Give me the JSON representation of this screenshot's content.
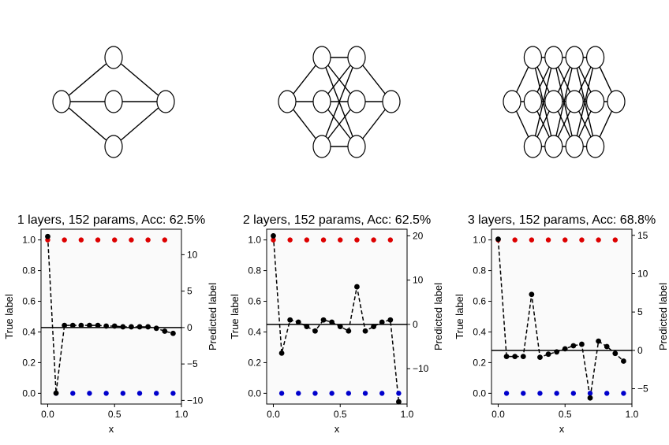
{
  "chart_data": [
    {
      "type": "scatter",
      "title": "1 layers, 152 params, Acc: 62.5%",
      "xlabel": "x",
      "ylabel": "True label",
      "y2label": "Predicted label",
      "xlim": [
        -0.05,
        1.0
      ],
      "ylim": [
        -0.07,
        1.07
      ],
      "y2lim": [
        -10.5,
        13.5
      ],
      "xticks": [
        "0.0",
        "0.5",
        "1.0"
      ],
      "yticks": [
        "0.0",
        "0.2",
        "0.4",
        "0.6",
        "0.8",
        "1.0"
      ],
      "y2ticks": [
        "−10",
        "−5",
        "0",
        "5",
        "10"
      ],
      "y2tick_values": [
        -10,
        -5,
        0,
        5,
        10
      ],
      "network_layers": [
        1,
        3,
        1
      ],
      "colors": {
        "true_positive": "#dd0000",
        "true_negative": "#0000cc",
        "prediction": "#000000",
        "zero_line": "#000000"
      },
      "true_positive": {
        "x": [
          0.0,
          0.125,
          0.25,
          0.375,
          0.5,
          0.625,
          0.75,
          0.875
        ],
        "y": [
          1,
          1,
          1,
          1,
          1,
          1,
          1,
          1
        ]
      },
      "true_negative": {
        "x": [
          0.0625,
          0.1875,
          0.3125,
          0.4375,
          0.5625,
          0.6875,
          0.8125,
          0.9375
        ],
        "y": [
          0,
          0,
          0,
          0,
          0,
          0,
          0,
          0
        ]
      },
      "prediction": {
        "x": [
          0.0,
          0.0625,
          0.125,
          0.1875,
          0.25,
          0.3125,
          0.375,
          0.4375,
          0.5,
          0.5625,
          0.625,
          0.6875,
          0.75,
          0.8125,
          0.875,
          0.9375
        ],
        "y": [
          12.5,
          -9.0,
          0.3,
          0.3,
          0.3,
          0.3,
          0.3,
          0.2,
          0.2,
          0.1,
          0.1,
          0.1,
          0.1,
          -0.1,
          -0.5,
          -0.8
        ]
      }
    },
    {
      "type": "scatter",
      "title": "2 layers, 152 params, Acc: 62.5%",
      "xlabel": "x",
      "ylabel": "True label",
      "y2label": "Predicted label",
      "xlim": [
        -0.05,
        1.0
      ],
      "ylim": [
        -0.07,
        1.07
      ],
      "y2lim": [
        -18.0,
        21.5
      ],
      "xticks": [
        "0.0",
        "0.5",
        "1.0"
      ],
      "yticks": [
        "0.0",
        "0.2",
        "0.4",
        "0.6",
        "0.8",
        "1.0"
      ],
      "y2ticks": [
        "−10",
        "0",
        "10",
        "20"
      ],
      "y2tick_values": [
        -10,
        0,
        10,
        20
      ],
      "network_layers": [
        1,
        3,
        3,
        1
      ],
      "colors": {
        "true_positive": "#dd0000",
        "true_negative": "#0000cc",
        "prediction": "#000000",
        "zero_line": "#000000"
      },
      "true_positive": {
        "x": [
          0.0,
          0.125,
          0.25,
          0.375,
          0.5,
          0.625,
          0.75,
          0.875
        ],
        "y": [
          1,
          1,
          1,
          1,
          1,
          1,
          1,
          1
        ]
      },
      "true_negative": {
        "x": [
          0.0625,
          0.1875,
          0.3125,
          0.4375,
          0.5625,
          0.6875,
          0.8125,
          0.9375
        ],
        "y": [
          0,
          0,
          0,
          0,
          0,
          0,
          0,
          0
        ]
      },
      "prediction": {
        "x": [
          0.0,
          0.0625,
          0.125,
          0.1875,
          0.25,
          0.3125,
          0.375,
          0.4375,
          0.5,
          0.5625,
          0.625,
          0.6875,
          0.75,
          0.8125,
          0.875,
          0.9375
        ],
        "y": [
          20.0,
          -6.5,
          1.0,
          0.5,
          -0.5,
          -1.5,
          1.0,
          0.5,
          -0.5,
          -1.5,
          8.5,
          -1.5,
          -0.5,
          0.5,
          1.0,
          -17.5
        ]
      }
    },
    {
      "type": "scatter",
      "title": "3 layers, 152 params, Acc: 68.8%",
      "xlabel": "x",
      "ylabel": "True label",
      "y2label": "Predicted label",
      "xlim": [
        -0.05,
        1.0
      ],
      "ylim": [
        -0.07,
        1.07
      ],
      "y2lim": [
        -7.0,
        15.8
      ],
      "xticks": [
        "0.0",
        "0.5",
        "1.0"
      ],
      "yticks": [
        "0.0",
        "0.2",
        "0.4",
        "0.6",
        "0.8",
        "1.0"
      ],
      "y2ticks": [
        "−5",
        "0",
        "5",
        "10",
        "15"
      ],
      "y2tick_values": [
        -5,
        0,
        5,
        10,
        15
      ],
      "network_layers": [
        1,
        3,
        3,
        3,
        3,
        1
      ],
      "colors": {
        "true_positive": "#dd0000",
        "true_negative": "#0000cc",
        "prediction": "#000000",
        "zero_line": "#000000"
      },
      "true_positive": {
        "x": [
          0.0,
          0.125,
          0.25,
          0.375,
          0.5,
          0.625,
          0.75,
          0.875
        ],
        "y": [
          1,
          1,
          1,
          1,
          1,
          1,
          1,
          1
        ]
      },
      "true_negative": {
        "x": [
          0.0625,
          0.1875,
          0.3125,
          0.4375,
          0.5625,
          0.6875,
          0.8125,
          0.9375
        ],
        "y": [
          0,
          0,
          0,
          0,
          0,
          0,
          0,
          0
        ]
      },
      "prediction": {
        "x": [
          0.0,
          0.0625,
          0.125,
          0.1875,
          0.25,
          0.3125,
          0.375,
          0.4375,
          0.5,
          0.5625,
          0.625,
          0.6875,
          0.75,
          0.8125,
          0.875,
          0.9375
        ],
        "y": [
          14.5,
          -0.8,
          -0.8,
          -0.8,
          7.3,
          -0.9,
          -0.5,
          -0.2,
          0.2,
          0.6,
          0.8,
          -6.2,
          1.2,
          0.5,
          -0.4,
          -1.4
        ]
      }
    }
  ]
}
